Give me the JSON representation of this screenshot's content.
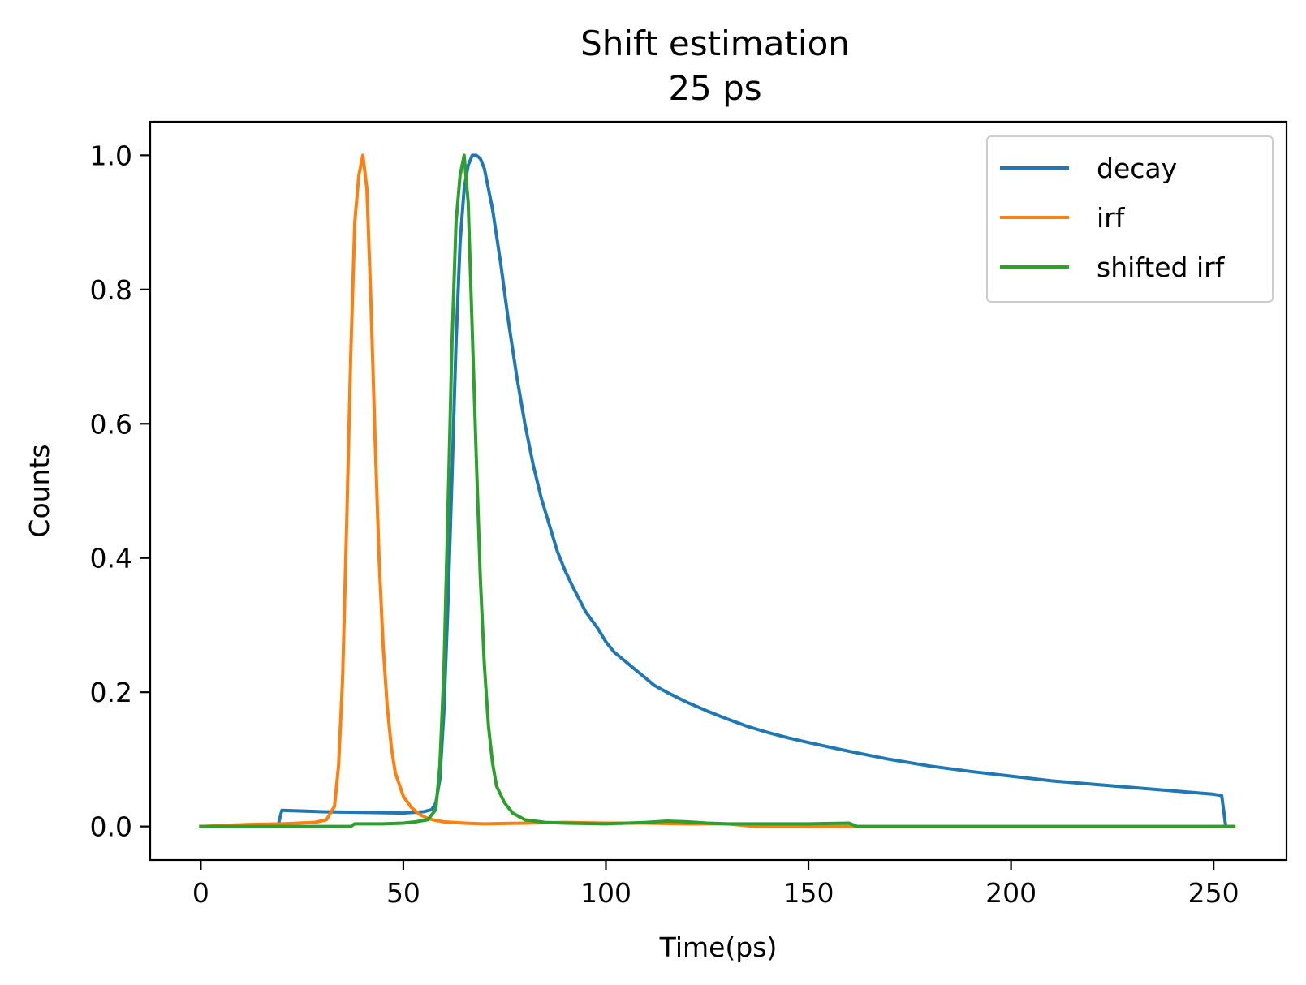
{
  "chart_data": {
    "type": "line",
    "title": "Shift estimation",
    "subtitle": "25 ps",
    "xlabel": "Time(ps)",
    "ylabel": "Counts",
    "xlim": [
      -12.5,
      268
    ],
    "ylim": [
      -0.05,
      1.05
    ],
    "xticks": [
      0,
      50,
      100,
      150,
      200,
      250
    ],
    "yticks": [
      0.0,
      0.2,
      0.4,
      0.6,
      0.8,
      1.0
    ],
    "xtick_labels": [
      "0",
      "50",
      "100",
      "150",
      "200",
      "250"
    ],
    "ytick_labels": [
      "0.0",
      "0.2",
      "0.4",
      "0.6",
      "0.8",
      "1.0"
    ],
    "grid": false,
    "legend_position": "top-right",
    "series": [
      {
        "name": "decay",
        "color": "#1f77b4",
        "x": [
          0,
          19,
          20,
          30,
          40,
          50,
          55,
          57,
          58,
          59,
          60,
          61,
          62,
          63,
          64,
          65,
          66,
          67,
          68,
          69,
          70,
          72,
          74,
          76,
          78,
          80,
          82,
          84,
          86,
          88,
          90,
          92,
          95,
          98,
          100,
          102,
          105,
          108,
          110,
          112,
          115,
          120,
          125,
          130,
          135,
          140,
          145,
          150,
          160,
          170,
          180,
          190,
          200,
          210,
          220,
          230,
          240,
          250,
          252,
          253,
          255
        ],
        "y": [
          0,
          0,
          0.024,
          0.022,
          0.021,
          0.02,
          0.022,
          0.025,
          0.035,
          0.07,
          0.17,
          0.33,
          0.52,
          0.72,
          0.87,
          0.95,
          0.985,
          1.0,
          1.0,
          0.995,
          0.98,
          0.92,
          0.84,
          0.75,
          0.67,
          0.6,
          0.54,
          0.49,
          0.45,
          0.41,
          0.38,
          0.355,
          0.32,
          0.295,
          0.275,
          0.26,
          0.245,
          0.23,
          0.22,
          0.21,
          0.2,
          0.185,
          0.172,
          0.16,
          0.149,
          0.14,
          0.132,
          0.125,
          0.112,
          0.1,
          0.09,
          0.082,
          0.075,
          0.068,
          0.063,
          0.058,
          0.053,
          0.048,
          0.046,
          0.0,
          0.0
        ]
      },
      {
        "name": "irf",
        "color": "#ff7f0e",
        "x": [
          0,
          12,
          20,
          28,
          31,
          33,
          34,
          35,
          36,
          37,
          38,
          39,
          40,
          41,
          42,
          43,
          44,
          45,
          46,
          47,
          48,
          50,
          52,
          54,
          56,
          58,
          60,
          65,
          70,
          80,
          90,
          100,
          110,
          120,
          130,
          137,
          140,
          150,
          160,
          161,
          200,
          255
        ],
        "y": [
          0,
          0.003,
          0.004,
          0.006,
          0.01,
          0.03,
          0.09,
          0.22,
          0.45,
          0.7,
          0.9,
          0.97,
          1.0,
          0.95,
          0.78,
          0.58,
          0.4,
          0.27,
          0.18,
          0.12,
          0.08,
          0.045,
          0.028,
          0.018,
          0.012,
          0.009,
          0.007,
          0.005,
          0.004,
          0.005,
          0.006,
          0.005,
          0.005,
          0.004,
          0.004,
          0.0,
          0.0,
          0.0,
          0.0,
          0.0,
          0.0,
          0.0
        ]
      },
      {
        "name": "shifted irf",
        "color": "#2ca02c",
        "x": [
          0,
          37,
          38,
          40,
          45,
          50,
          53,
          56,
          58,
          59,
          60,
          61,
          62,
          63,
          64,
          65,
          66,
          67,
          68,
          69,
          70,
          71,
          72,
          73,
          75,
          77,
          80,
          85,
          90,
          100,
          110,
          115,
          120,
          125,
          130,
          140,
          150,
          160,
          162,
          200,
          255
        ],
        "y": [
          0,
          0.0,
          0.004,
          0.004,
          0.004,
          0.005,
          0.007,
          0.01,
          0.025,
          0.09,
          0.23,
          0.47,
          0.72,
          0.9,
          0.97,
          1.0,
          0.93,
          0.74,
          0.55,
          0.37,
          0.24,
          0.15,
          0.095,
          0.06,
          0.035,
          0.02,
          0.01,
          0.006,
          0.005,
          0.004,
          0.006,
          0.008,
          0.007,
          0.005,
          0.004,
          0.004,
          0.004,
          0.005,
          0.0,
          0.0,
          0.0
        ]
      }
    ]
  }
}
